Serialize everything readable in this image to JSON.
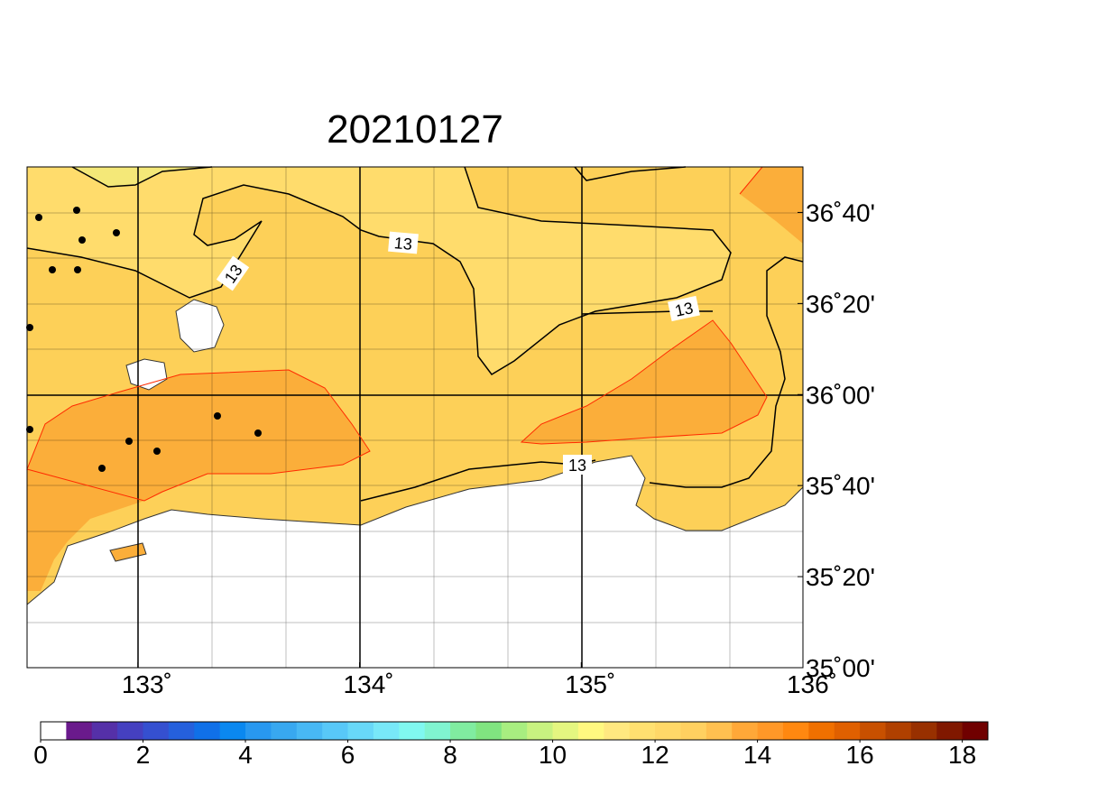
{
  "title": "20210127",
  "map": {
    "lon_range": [
      132.5,
      136
    ],
    "lat_range": [
      35,
      36.8333
    ],
    "lon_ticks": [
      {
        "value": 133,
        "label": "133˚"
      },
      {
        "value": 134,
        "label": "134˚"
      },
      {
        "value": 135,
        "label": "135˚"
      },
      {
        "value": 136,
        "label": "136˚"
      }
    ],
    "lat_ticks": [
      {
        "value": 35,
        "label": "35˚00'"
      },
      {
        "value": 35.3333,
        "label": "35˚20'"
      },
      {
        "value": 35.6667,
        "label": "35˚40'"
      },
      {
        "value": 36,
        "label": "36˚00'"
      },
      {
        "value": 36.3333,
        "label": "36˚20'"
      },
      {
        "value": 36.6667,
        "label": "36˚40'"
      }
    ],
    "contour_labels": [
      "13",
      "13",
      "13",
      "13"
    ]
  },
  "colorbar": {
    "range": [
      0,
      18.5
    ],
    "ticks": [
      0,
      2,
      4,
      6,
      8,
      10,
      12,
      14,
      16,
      18
    ],
    "colors": [
      "#ffffff",
      "#6a1a8c",
      "#5530a8",
      "#4540c0",
      "#3550d0",
      "#2560dc",
      "#1070e8",
      "#0a88f0",
      "#2898f0",
      "#38a8f0",
      "#48b8f4",
      "#58c8f8",
      "#68d8f8",
      "#78e8f8",
      "#80f8f0",
      "#80f4d0",
      "#80eca0",
      "#80e480",
      "#a8ee80",
      "#c8f280",
      "#e4f680",
      "#fff880",
      "#ffe880",
      "#ffe070",
      "#ffd868",
      "#ffd060",
      "#ffc050",
      "#ffa838",
      "#ff9828",
      "#ff8810",
      "#f07000",
      "#e06000",
      "#c85000",
      "#b04000",
      "#983000",
      "#801800",
      "#700000"
    ]
  }
}
